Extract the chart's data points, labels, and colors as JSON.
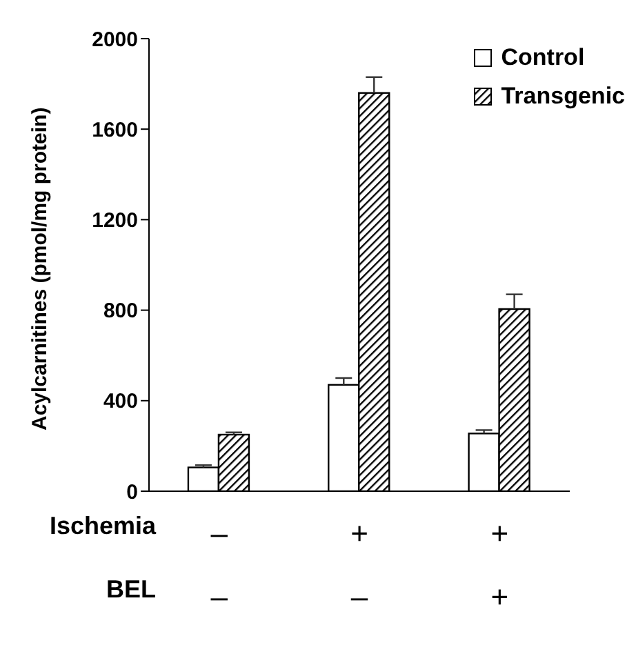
{
  "chart_data": {
    "type": "bar",
    "ylabel": "Acylcarnitines (pmol/mg protein)",
    "xlabel": "Ischemia\nBEL",
    "categories": [
      "–\n–",
      "+\n–",
      "+\n+"
    ],
    "series": [
      {
        "name": "Control",
        "color": "#ffffff",
        "values": [
          105,
          470,
          255
        ],
        "errors": [
          10,
          30,
          15
        ]
      },
      {
        "name": "Transgenic",
        "color": "#000000",
        "values": [
          250,
          1760,
          805
        ],
        "errors": [
          10,
          70,
          65
        ]
      }
    ],
    "ylim": [
      0,
      2000
    ],
    "yticks": [
      0,
      400,
      800,
      1200,
      1600,
      2000
    ],
    "grid": false,
    "legend": "top right"
  }
}
